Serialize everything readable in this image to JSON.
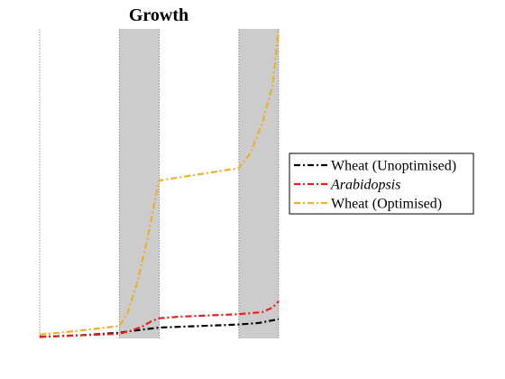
{
  "chart_data": {
    "type": "line",
    "title": "Growth",
    "xlabel": "",
    "ylabel": "",
    "xlim": [
      0,
      6
    ],
    "ylim": [
      0,
      1
    ],
    "grid": false,
    "legend_position": "right",
    "shaded_regions": [
      [
        2,
        3
      ],
      [
        5,
        6
      ]
    ],
    "period_boundaries": [
      0,
      2,
      3,
      5,
      6
    ],
    "series": [
      {
        "name": "Wheat (Unoptimised)",
        "color": "#000000",
        "x": [
          0,
          1,
          2,
          2.3,
          3,
          4,
          5,
          5.5,
          6
        ],
        "y": [
          0.005,
          0.01,
          0.018,
          0.024,
          0.035,
          0.04,
          0.045,
          0.05,
          0.062
        ]
      },
      {
        "name": "Arabidopsis",
        "italic": true,
        "color": "#e8201e",
        "x": [
          0,
          1,
          2,
          2.3,
          2.6,
          2.8,
          3,
          3.5,
          4,
          5,
          5.6,
          5.85,
          6
        ],
        "y": [
          0.005,
          0.01,
          0.015,
          0.025,
          0.04,
          0.055,
          0.065,
          0.07,
          0.073,
          0.078,
          0.085,
          0.1,
          0.12
        ]
      },
      {
        "name": "Wheat (Optimised)",
        "color": "#ecb02a",
        "x": [
          0,
          1,
          2,
          2.2,
          2.45,
          2.7,
          2.9,
          3,
          3.5,
          4,
          5,
          5.3,
          5.6,
          5.85,
          6
        ],
        "y": [
          0.012,
          0.025,
          0.04,
          0.08,
          0.18,
          0.32,
          0.45,
          0.51,
          0.52,
          0.53,
          0.55,
          0.6,
          0.7,
          0.82,
          1.0
        ]
      }
    ]
  }
}
